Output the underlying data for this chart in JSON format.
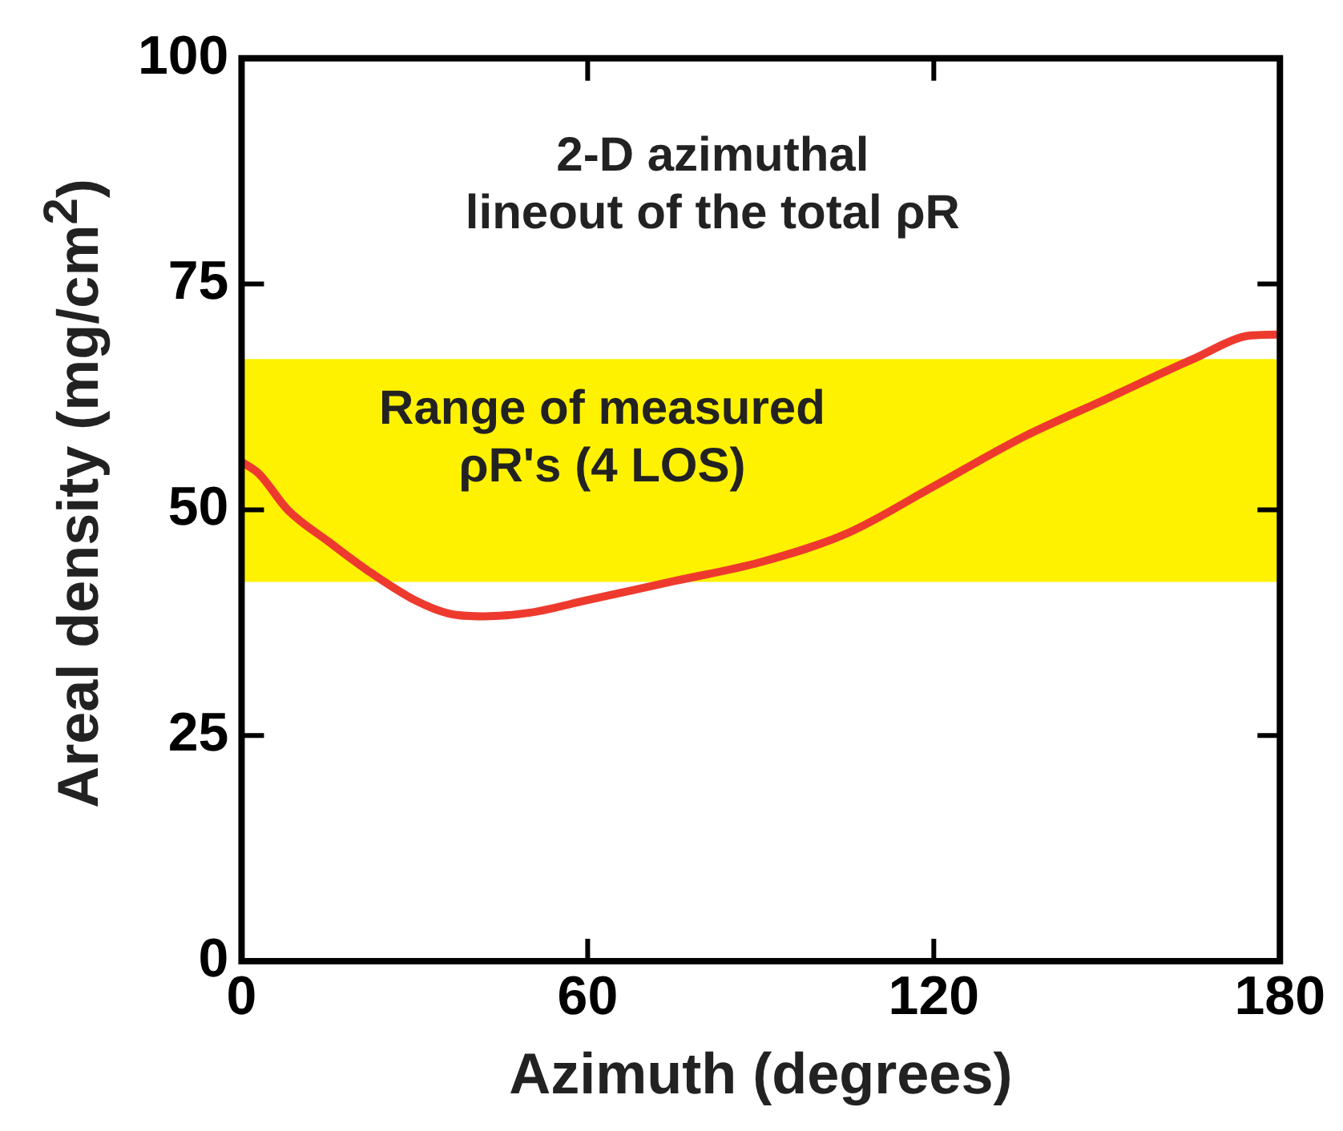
{
  "chart_data": {
    "type": "line",
    "xlabel": "Azimuth (degrees)",
    "ylabel": "Areal density (mg/cm$^{2}$)",
    "x": [
      0,
      3,
      8,
      15,
      22,
      30,
      36,
      42,
      50,
      60,
      75,
      90,
      105,
      120,
      135,
      150,
      165,
      175,
      180
    ],
    "series": [
      {
        "color": "#ee3a2e",
        "values": [
          55.3,
          54,
          50,
          46.5,
          43.2,
          40,
          38.5,
          38.2,
          38.6,
          40,
          42.1,
          44.2,
          47.4,
          52.6,
          57.9,
          62.3,
          66.7,
          69.3,
          69.4
        ]
      }
    ],
    "xlim": [
      0,
      180
    ],
    "xticks": [
      0,
      60,
      120,
      180
    ],
    "ylim": [
      0,
      100
    ],
    "yticks": [
      0,
      25,
      50,
      75,
      100
    ],
    "grid": false,
    "legend": false,
    "marker": "none",
    "line_style": "solid",
    "bands": [
      {
        "axis": "y",
        "from": 42,
        "to": 66.7,
        "label": "Range of measured\nρR's (4 LOS)",
        "color": "#fff200"
      }
    ],
    "annotations": [
      "2-D azimuthal\nlineout of the total ρR"
    ]
  }
}
